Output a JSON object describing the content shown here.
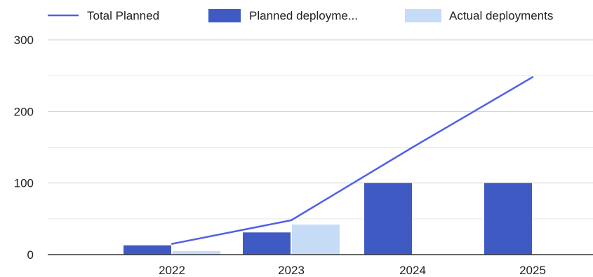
{
  "chart_data": {
    "type": "bar",
    "categories": [
      "2022",
      "2023",
      "2024",
      "2025"
    ],
    "series": [
      {
        "name": "Total Planned",
        "kind": "line",
        "color": "#5061e8",
        "values": [
          15,
          48,
          150,
          248
        ]
      },
      {
        "name": "Planned deployme...",
        "kind": "bar",
        "color": "#3f5ac2",
        "values": [
          13,
          31,
          100,
          100
        ]
      },
      {
        "name": "Actual deployments",
        "kind": "bar",
        "color": "#c6dcf6",
        "values": [
          5,
          42,
          null,
          null
        ]
      }
    ],
    "yticks": [
      "0",
      "100",
      "200",
      "300"
    ],
    "ylim": [
      0,
      300
    ],
    "grid": true,
    "legend_position": "top",
    "title": "",
    "xlabel": "",
    "ylabel": ""
  }
}
